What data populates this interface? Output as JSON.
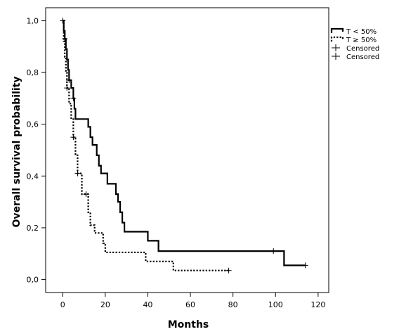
{
  "chart_data": {
    "type": "line",
    "chart_kind": "kaplan-meier survival step plot",
    "xlabel": "Months",
    "ylabel": "Overall survival probability",
    "xlim": [
      -8,
      125
    ],
    "ylim": [
      -0.05,
      1.05
    ],
    "x_ticks": [
      0,
      20,
      40,
      60,
      80,
      100,
      120
    ],
    "x_tick_labels": [
      "0",
      "20",
      "40",
      "60",
      "80",
      "100",
      "120"
    ],
    "y_ticks": [
      0.0,
      0.2,
      0.4,
      0.6,
      0.8,
      1.0
    ],
    "y_tick_labels": [
      "0,0",
      "0,2",
      "0,4",
      "0,6",
      "0,8",
      "1,0"
    ],
    "grid": false,
    "legend_position": "right, top",
    "legend": [
      {
        "label": "T < 50%",
        "marker": "solid line"
      },
      {
        "label": "T ≥ 50%",
        "marker": "dotted line"
      },
      {
        "label": "Censored",
        "marker": "plus"
      },
      {
        "label": "Censored",
        "marker": "plus"
      }
    ],
    "series": [
      {
        "name": "T < 50%",
        "style": "solid",
        "color": "#000000",
        "steps": [
          [
            0,
            1.0
          ],
          [
            0.5,
            0.96
          ],
          [
            1,
            0.93
          ],
          [
            1.5,
            0.89
          ],
          [
            2,
            0.85
          ],
          [
            2.5,
            0.81
          ],
          [
            3,
            0.77
          ],
          [
            4,
            0.74
          ],
          [
            5,
            0.7
          ],
          [
            5.5,
            0.66
          ],
          [
            6,
            0.62
          ],
          [
            12,
            0.59
          ],
          [
            13,
            0.55
          ],
          [
            14,
            0.52
          ],
          [
            16,
            0.48
          ],
          [
            17,
            0.44
          ],
          [
            18,
            0.41
          ],
          [
            21,
            0.37
          ],
          [
            25,
            0.33
          ],
          [
            26,
            0.3
          ],
          [
            27,
            0.26
          ],
          [
            28,
            0.22
          ],
          [
            29,
            0.185
          ],
          [
            40,
            0.15
          ],
          [
            45,
            0.11
          ],
          [
            104,
            0.055
          ]
        ],
        "end_x": 114,
        "censored": [
          [
            0,
            1.0
          ],
          [
            1,
            0.93
          ],
          [
            3,
            0.77
          ],
          [
            5,
            0.7
          ],
          [
            99,
            0.11
          ],
          [
            114,
            0.055
          ]
        ]
      },
      {
        "name": "T ≥ 50%",
        "style": "dotted",
        "color": "#000000",
        "steps": [
          [
            0,
            1.0
          ],
          [
            0.5,
            0.92
          ],
          [
            1,
            0.86
          ],
          [
            1.5,
            0.8
          ],
          [
            2,
            0.74
          ],
          [
            3,
            0.68
          ],
          [
            4,
            0.62
          ],
          [
            5,
            0.55
          ],
          [
            6,
            0.48
          ],
          [
            7,
            0.41
          ],
          [
            9,
            0.33
          ],
          [
            12,
            0.26
          ],
          [
            13,
            0.21
          ],
          [
            15,
            0.18
          ],
          [
            19,
            0.14
          ],
          [
            20,
            0.105
          ],
          [
            39,
            0.07
          ],
          [
            52,
            0.035
          ]
        ],
        "end_x": 78,
        "censored": [
          [
            2,
            0.74
          ],
          [
            5,
            0.55
          ],
          [
            7,
            0.41
          ],
          [
            11,
            0.33
          ],
          [
            78,
            0.035
          ]
        ]
      }
    ]
  }
}
